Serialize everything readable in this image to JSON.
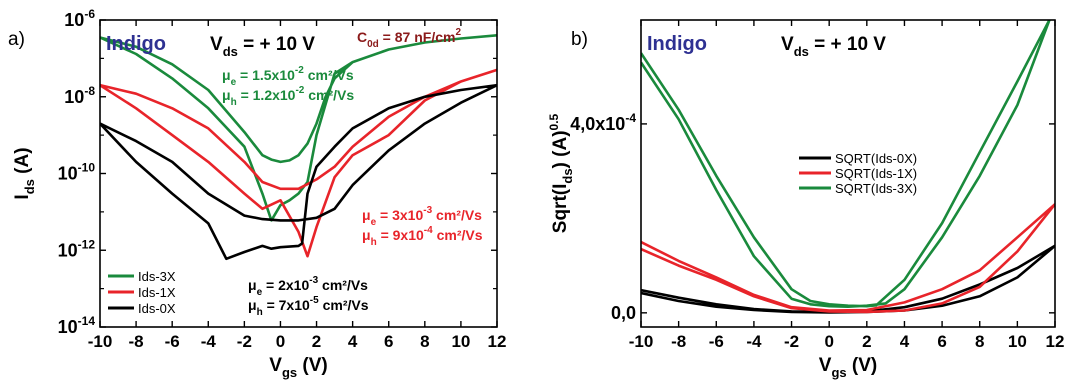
{
  "chart_data": [
    {
      "panel_label": "a)",
      "type": "line",
      "yscale": "log",
      "xlabel": "V_gs (V)",
      "ylabel": "I_ds (A)",
      "xlim": [
        -10,
        12
      ],
      "ylim": [
        1e-14,
        1e-06
      ],
      "xticks": [
        "-10",
        "-8",
        "-6",
        "-4",
        "-2",
        "0",
        "2",
        "4",
        "6",
        "8",
        "10",
        "12"
      ],
      "yticks": [
        {
          "value": 1e-06,
          "exp": "-6"
        },
        {
          "value": 1e-08,
          "exp": "-8"
        },
        {
          "value": 1e-10,
          "exp": "-10"
        },
        {
          "value": 1e-12,
          "exp": "-12"
        },
        {
          "value": 1e-14,
          "exp": "-14"
        }
      ],
      "annotations": {
        "material": "Indigo",
        "vds": "V_ds = + 10 V",
        "c0d": "C_0d = 87 nF/cm^2",
        "mobility_3x": [
          "μe = 1.5x10^-2 cm²/Vs",
          "μh = 1.2x10^-2 cm²/Vs"
        ],
        "mobility_1x": [
          "μe = 3x10^-3 cm²/Vs",
          "μh = 9x10^-4 cm²/Vs"
        ],
        "mobility_0x": [
          "μe = 2x10^-3 cm²/Vs",
          "μh = 7x10^-5 cm²/Vs"
        ]
      },
      "legend": {
        "placement": "bottom-left",
        "entries": [
          "Ids-3X",
          "Ids-1X",
          "Ids-0X"
        ]
      },
      "series": [
        {
          "name": "Ids-3X",
          "color": "#1a8a3c",
          "x": [
            -10,
            -8,
            -6,
            -4,
            -2,
            -1,
            -0.5,
            0,
            0.5,
            1,
            1.5,
            2,
            2.5,
            3,
            4,
            6,
            8,
            10,
            12,
            10,
            8,
            6,
            4,
            3,
            2,
            1.5,
            1,
            0.5,
            0,
            -0.5,
            -1,
            -2,
            -4,
            -6,
            -8,
            -10
          ],
          "y": [
            3.5e-07,
            2e-07,
            7e-08,
            1.5e-08,
            1.2e-09,
            3e-10,
            2.3e-10,
            2e-10,
            2.2e-10,
            3e-10,
            6e-10,
            2e-09,
            1e-08,
            3e-08,
            8e-08,
            1.7e-07,
            2.6e-07,
            3.3e-07,
            4e-07,
            3.3e-07,
            2.6e-07,
            1.7e-07,
            8e-08,
            4e-08,
            1e-09,
            6e-11,
            3e-11,
            2e-11,
            1.5e-11,
            6e-12,
            3e-11,
            5e-10,
            5e-09,
            3e-08,
            1.3e-07,
            3.5e-07
          ]
        },
        {
          "name": "Ids-1X",
          "color": "#e8242a",
          "x": [
            -10,
            -8,
            -6,
            -4,
            -2,
            -1,
            0,
            1,
            2,
            3,
            4,
            6,
            8,
            10,
            12,
            10,
            8,
            6,
            4,
            3,
            2,
            1.5,
            1,
            0,
            -1,
            -2,
            -4,
            -6,
            -8,
            -10
          ],
          "y": [
            2e-08,
            1.2e-08,
            5e-09,
            1.5e-09,
            2e-10,
            6e-11,
            4e-11,
            4e-11,
            7e-11,
            1.5e-10,
            5e-10,
            3e-09,
            1e-08,
            2.5e-08,
            5e-08,
            2.5e-08,
            8e-09,
            1e-09,
            3e-10,
            8e-11,
            4e-12,
            7e-13,
            3e-12,
            2e-11,
            1.2e-11,
            3e-11,
            2e-10,
            1e-09,
            5e-09,
            2e-08
          ]
        },
        {
          "name": "Ids-0X",
          "color": "#000000",
          "x": [
            -10,
            -8,
            -6,
            -4,
            -2,
            -1,
            0,
            1,
            2,
            3,
            4,
            6,
            8,
            10,
            12,
            10,
            8,
            6,
            4,
            3,
            2,
            1.5,
            1.2,
            1,
            0,
            -0.5,
            -1,
            -2,
            -3,
            -4,
            -6,
            -8,
            -10
          ],
          "y": [
            2e-09,
            7e-10,
            2e-10,
            3e-11,
            8e-12,
            6.5e-12,
            6e-12,
            6e-12,
            7e-12,
            1.2e-11,
            5e-11,
            4e-10,
            2e-09,
            7e-09,
            2e-08,
            1.5e-08,
            1e-08,
            5e-09,
            1.5e-09,
            5e-10,
            1.5e-10,
            3e-11,
            1.5e-12,
            1.3e-12,
            1.2e-12,
            1.1e-12,
            1.3e-12,
            9e-13,
            6e-13,
            5e-12,
            3e-11,
            2e-10,
            2e-09
          ]
        }
      ]
    },
    {
      "panel_label": "b)",
      "type": "line",
      "xlabel": "V_gs (V)",
      "ylabel": "Sqrt(I_ds) (A)^0.5",
      "xlim": [
        -10,
        12
      ],
      "ylim": [
        -3e-05,
        0.00062
      ],
      "xticks": [
        "-10",
        "-8",
        "-6",
        "-4",
        "-2",
        "0",
        "2",
        "4",
        "6",
        "8",
        "10",
        "12"
      ],
      "yticks": [
        {
          "value": 0,
          "label": "0,0"
        },
        {
          "value": 0.0004,
          "label": "4,0x10",
          "exp": "-4"
        }
      ],
      "annotations": {
        "material": "Indigo",
        "vds": "V_ds = + 10 V"
      },
      "legend": {
        "placement": "top-right",
        "entries": [
          "SQRT(Ids-0X)",
          "SQRT(Ids-1X)",
          "SQRT(Ids-3X)"
        ]
      },
      "series": [
        {
          "name": "SQRT(Ids-0X)",
          "color": "#000000",
          "x": [
            -10,
            -8,
            -6,
            -4,
            -2,
            0,
            2,
            4,
            6,
            8,
            10,
            12,
            10,
            8,
            6,
            4,
            2,
            0,
            -2,
            -4,
            -6,
            -8,
            -10
          ],
          "y": [
            4.8e-05,
            3.2e-05,
            1.8e-05,
            8e-06,
            3e-06,
            2e-06,
            3e-06,
            1.2e-05,
            3e-05,
            6e-05,
            9.5e-05,
            0.000142,
            7.5e-05,
            3.5e-05,
            1.5e-05,
            5e-06,
            2e-06,
            1e-06,
            2e-06,
            6e-06,
            1.3e-05,
            2.5e-05,
            4.2e-05
          ]
        },
        {
          "name": "SQRT(Ids-1X)",
          "color": "#e8242a",
          "x": [
            -10,
            -8,
            -6,
            -4,
            -2,
            0,
            2,
            4,
            6,
            8,
            10,
            12,
            10,
            8,
            6,
            4,
            2,
            0,
            -2,
            -4,
            -6,
            -8,
            -10
          ],
          "y": [
            0.00015,
            0.00011,
            7.5e-05,
            3.8e-05,
            1.2e-05,
            5e-06,
            6e-06,
            2.2e-05,
            5e-05,
            9e-05,
            0.00016,
            0.00023,
            0.00013,
            5.5e-05,
            2e-05,
            5e-06,
            2e-06,
            3e-06,
            1e-05,
            3.5e-05,
            7e-05,
            0.0001,
            0.000135
          ]
        },
        {
          "name": "SQRT(Ids-3X)",
          "color": "#1a8a3c",
          "x": [
            -10,
            -8,
            -6,
            -4,
            -2,
            -1,
            0,
            1,
            2,
            2.5,
            4,
            6,
            8,
            10,
            11.7,
            10,
            8,
            6,
            4,
            3,
            2,
            1,
            0,
            -1,
            -2,
            -4,
            -6,
            -8,
            -10
          ],
          "y": [
            0.00055,
            0.00043,
            0.00029,
            0.00016,
            5e-05,
            2.5e-05,
            1.8e-05,
            1.5e-05,
            1.4e-05,
            1.6e-05,
            7e-05,
            0.00019,
            0.00034,
            0.00049,
            0.00062,
            0.00044,
            0.00029,
            0.00016,
            5e-05,
            2e-05,
            1.5e-05,
            1.3e-05,
            1.4e-05,
            1.8e-05,
            3e-05,
            0.00012,
            0.00026,
            0.00041,
            0.00053
          ]
        }
      ]
    }
  ]
}
